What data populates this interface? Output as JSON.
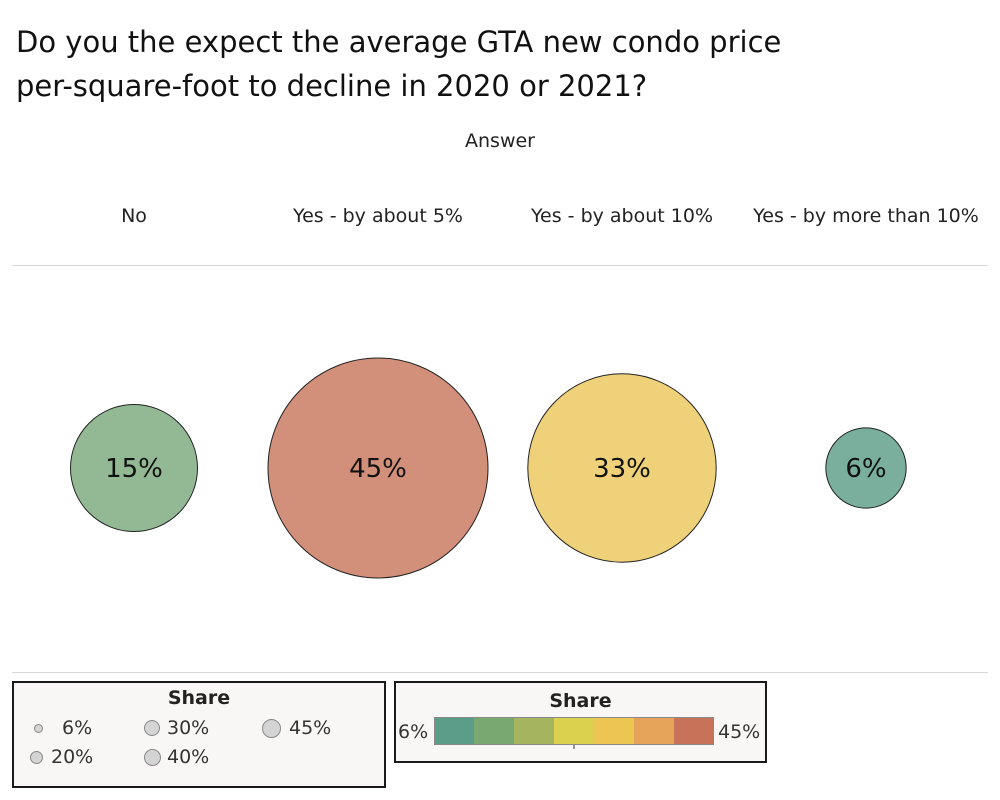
{
  "title_lines": [
    "Do you the expect the average GTA new condo price",
    "per-square-foot to decline in 2020 or 2021?"
  ],
  "chart_data": {
    "type": "bubble",
    "header": "Answer",
    "categories": [
      "No",
      "Yes - by about 5%",
      "Yes - by about 10%",
      "Yes - by more than 10%"
    ],
    "values": [
      15,
      45,
      33,
      6
    ],
    "value_labels": [
      "15%",
      "45%",
      "33%",
      "6%"
    ],
    "colors": [
      "#92b894",
      "#d28f7a",
      "#efd17a",
      "#7aaf9e"
    ],
    "unit": "%"
  },
  "size_legend": {
    "title": "Share",
    "items": [
      "6%",
      "30%",
      "45%",
      "20%",
      "40%"
    ],
    "values": [
      6,
      30,
      45,
      20,
      40
    ]
  },
  "color_legend": {
    "title": "Share",
    "min_label": "6%",
    "max_label": "45%",
    "colors": [
      "#5a9e8a",
      "#79a870",
      "#a5b55e",
      "#dbd14e",
      "#ecc553",
      "#e5a45a",
      "#c9725a"
    ]
  }
}
